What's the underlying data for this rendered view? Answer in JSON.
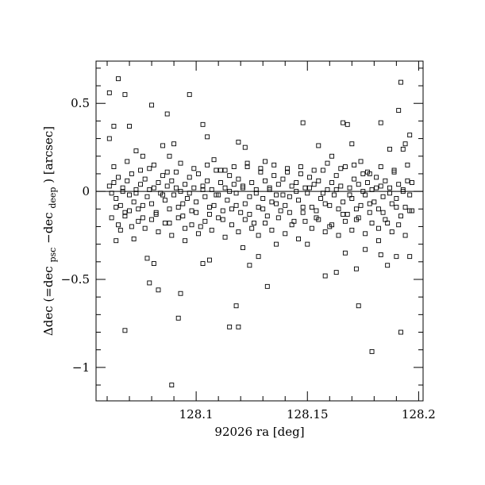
{
  "chart_data": {
    "type": "scatter",
    "title": "",
    "xlabel": "92026 ra [deg]",
    "ylabel": "Δdec (=dec_psc−dec_deep) [arcsec]",
    "ylabel_parts": {
      "prefix": "Δdec (=dec",
      "sub1": "psc",
      "minus": "−dec",
      "sub2": "deep",
      "suffix": ") [arcsec]"
    },
    "xlim": [
      128.055,
      128.202
    ],
    "ylim": [
      -1.19,
      0.74
    ],
    "x_ticks": [
      128.1,
      128.15,
      128.2
    ],
    "x_tick_labels": [
      "128.1",
      "128.15",
      "128.2"
    ],
    "y_ticks": [
      -1,
      -0.5,
      0,
      0.5
    ],
    "y_tick_labels": [
      "−1",
      "−0.5",
      "0",
      "0.5"
    ],
    "zero_line": 0,
    "grid": false,
    "marker": "open-square",
    "points": [
      [
        128.061,
        0.56
      ],
      [
        128.065,
        0.64
      ],
      [
        128.068,
        0.55
      ],
      [
        128.061,
        0.3
      ],
      [
        128.063,
        0.37
      ],
      [
        128.07,
        0.37
      ],
      [
        128.073,
        0.23
      ],
      [
        128.076,
        0.2
      ],
      [
        128.08,
        0.49
      ],
      [
        128.087,
        0.44
      ],
      [
        128.085,
        0.26
      ],
      [
        128.088,
        0.2
      ],
      [
        128.09,
        0.27
      ],
      [
        128.097,
        0.55
      ],
      [
        128.103,
        0.38
      ],
      [
        128.105,
        0.31
      ],
      [
        128.108,
        0.18
      ],
      [
        128.113,
        0.12
      ],
      [
        128.119,
        0.28
      ],
      [
        128.122,
        0.25
      ],
      [
        128.131,
        0.17
      ],
      [
        128.148,
        0.39
      ],
      [
        128.155,
        0.26
      ],
      [
        128.161,
        0.2
      ],
      [
        128.166,
        0.39
      ],
      [
        128.168,
        0.38
      ],
      [
        128.17,
        0.27
      ],
      [
        128.174,
        0.17
      ],
      [
        128.178,
        0.1
      ],
      [
        128.183,
        0.39
      ],
      [
        128.187,
        0.24
      ],
      [
        128.192,
        0.62
      ],
      [
        128.191,
        0.46
      ],
      [
        128.196,
        0.32
      ],
      [
        128.194,
        0.27
      ],
      [
        128.193,
        0.24
      ],
      [
        128.068,
        -0.79
      ],
      [
        128.078,
        -0.38
      ],
      [
        128.079,
        -0.52
      ],
      [
        128.081,
        -0.41
      ],
      [
        128.083,
        -0.56
      ],
      [
        128.089,
        -1.1
      ],
      [
        128.093,
        -0.58
      ],
      [
        128.092,
        -0.72
      ],
      [
        128.103,
        -0.41
      ],
      [
        128.106,
        -0.39
      ],
      [
        128.115,
        -0.77
      ],
      [
        128.118,
        -0.65
      ],
      [
        128.119,
        -0.77
      ],
      [
        128.124,
        -0.42
      ],
      [
        128.128,
        -0.37
      ],
      [
        128.132,
        -0.54
      ],
      [
        128.158,
        -0.48
      ],
      [
        128.163,
        -0.46
      ],
      [
        128.167,
        -0.35
      ],
      [
        128.173,
        -0.65
      ],
      [
        128.172,
        -0.44
      ],
      [
        128.179,
        -0.91
      ],
      [
        128.183,
        -0.36
      ],
      [
        128.186,
        -0.42
      ],
      [
        128.19,
        -0.37
      ],
      [
        128.192,
        -0.8
      ],
      [
        128.196,
        -0.37
      ],
      [
        128.182,
        -0.28
      ],
      [
        128.176,
        -0.33
      ],
      [
        128.15,
        -0.3
      ],
      [
        128.136,
        -0.3
      ],
      [
        128.121,
        -0.32
      ],
      [
        128.095,
        -0.28
      ],
      [
        128.072,
        -0.27
      ],
      [
        128.064,
        -0.28
      ],
      [
        128.066,
        -0.22
      ],
      [
        128.061,
        0.03
      ],
      [
        128.062,
        -0.01
      ],
      [
        128.063,
        0.05
      ],
      [
        128.064,
        -0.04
      ],
      [
        128.065,
        0.08
      ],
      [
        128.066,
        -0.08
      ],
      [
        128.067,
        0.02
      ],
      [
        128.068,
        -0.12
      ],
      [
        128.069,
        0.06
      ],
      [
        128.07,
        -0.02
      ],
      [
        128.071,
        0.1
      ],
      [
        128.072,
        -0.06
      ],
      [
        128.073,
        0.01
      ],
      [
        128.074,
        -0.1
      ],
      [
        128.075,
        0.04
      ],
      [
        128.076,
        -0.15
      ],
      [
        128.077,
        0.07
      ],
      [
        128.078,
        -0.03
      ],
      [
        128.079,
        0.13
      ],
      [
        128.08,
        -0.07
      ],
      [
        128.081,
        0.02
      ],
      [
        128.082,
        -0.12
      ],
      [
        128.083,
        0.05
      ],
      [
        128.084,
        -0.01
      ],
      [
        128.085,
        0.09
      ],
      [
        128.086,
        -0.05
      ],
      [
        128.087,
        0.03
      ],
      [
        128.088,
        -0.18
      ],
      [
        128.089,
        0.06
      ],
      [
        128.09,
        -0.02
      ],
      [
        128.091,
        0.11
      ],
      [
        128.092,
        -0.09
      ],
      [
        128.093,
        0.0
      ],
      [
        128.094,
        -0.14
      ],
      [
        128.095,
        0.04
      ],
      [
        128.096,
        -0.04
      ],
      [
        128.097,
        0.08
      ],
      [
        128.098,
        -0.11
      ],
      [
        128.099,
        0.02
      ],
      [
        128.1,
        -0.06
      ],
      [
        128.101,
        0.1
      ],
      [
        128.102,
        -0.2
      ],
      [
        128.103,
        0.03
      ],
      [
        128.104,
        -0.03
      ],
      [
        128.105,
        0.06
      ],
      [
        128.106,
        -0.13
      ],
      [
        128.107,
        0.01
      ],
      [
        128.108,
        -0.08
      ],
      [
        128.109,
        0.12
      ],
      [
        128.11,
        -0.02
      ],
      [
        128.111,
        0.05
      ],
      [
        128.112,
        -0.16
      ],
      [
        128.113,
        0.02
      ],
      [
        128.114,
        -0.05
      ],
      [
        128.115,
        0.09
      ],
      [
        128.116,
        -0.1
      ],
      [
        128.117,
        0.04
      ],
      [
        128.118,
        -0.01
      ],
      [
        128.119,
        0.07
      ],
      [
        128.12,
        -0.12
      ],
      [
        128.121,
        0.03
      ],
      [
        128.122,
        -0.07
      ],
      [
        128.123,
        0.14
      ],
      [
        128.124,
        -0.03
      ],
      [
        128.125,
        0.05
      ],
      [
        128.126,
        -0.18
      ],
      [
        128.127,
        0.01
      ],
      [
        128.128,
        -0.09
      ],
      [
        128.129,
        0.11
      ],
      [
        128.13,
        -0.04
      ],
      [
        128.131,
        0.06
      ],
      [
        128.132,
        -0.14
      ],
      [
        128.133,
        0.02
      ],
      [
        128.134,
        -0.06
      ],
      [
        128.135,
        0.09
      ],
      [
        128.136,
        -0.02
      ],
      [
        128.137,
        0.04
      ],
      [
        128.138,
        -0.11
      ],
      [
        128.139,
        0.07
      ],
      [
        128.14,
        -0.08
      ],
      [
        128.141,
        0.13
      ],
      [
        128.142,
        -0.03
      ],
      [
        128.143,
        0.03
      ],
      [
        128.144,
        -0.17
      ],
      [
        128.145,
        0.05
      ],
      [
        128.146,
        -0.05
      ],
      [
        128.147,
        0.1
      ],
      [
        128.148,
        -0.12
      ],
      [
        128.149,
        0.02
      ],
      [
        128.15,
        -0.01
      ],
      [
        128.151,
        0.08
      ],
      [
        128.152,
        -0.09
      ],
      [
        128.153,
        0.04
      ],
      [
        128.154,
        -0.15
      ],
      [
        128.155,
        0.06
      ],
      [
        128.156,
        -0.04
      ],
      [
        128.157,
        0.12
      ],
      [
        128.158,
        -0.07
      ],
      [
        128.159,
        0.01
      ],
      [
        128.16,
        -0.2
      ],
      [
        128.161,
        0.05
      ],
      [
        128.162,
        -0.02
      ],
      [
        128.163,
        0.09
      ],
      [
        128.164,
        -0.1
      ],
      [
        128.165,
        0.03
      ],
      [
        128.166,
        -0.06
      ],
      [
        128.167,
        0.14
      ],
      [
        128.168,
        -0.13
      ],
      [
        128.169,
        0.02
      ],
      [
        128.17,
        -0.04
      ],
      [
        128.171,
        0.07
      ],
      [
        128.172,
        -0.16
      ],
      [
        128.173,
        0.04
      ],
      [
        128.174,
        -0.08
      ],
      [
        128.175,
        0.1
      ],
      [
        128.176,
        -0.02
      ],
      [
        128.177,
        0.05
      ],
      [
        128.178,
        -0.12
      ],
      [
        128.179,
        0.01
      ],
      [
        128.18,
        -0.06
      ],
      [
        128.181,
        0.08
      ],
      [
        128.182,
        -0.1
      ],
      [
        128.183,
        0.03
      ],
      [
        128.184,
        -0.03
      ],
      [
        128.185,
        0.06
      ],
      [
        128.186,
        -0.18
      ],
      [
        128.187,
        0.02
      ],
      [
        128.188,
        -0.07
      ],
      [
        128.189,
        0.11
      ],
      [
        128.19,
        -0.04
      ],
      [
        128.191,
        0.04
      ],
      [
        128.192,
        -0.14
      ],
      [
        128.193,
        0.0
      ],
      [
        128.194,
        -0.09
      ],
      [
        128.195,
        0.06
      ],
      [
        128.196,
        -0.02
      ],
      [
        128.197,
        -0.11
      ],
      [
        128.197,
        0.05
      ],
      [
        128.062,
        -0.15
      ],
      [
        128.065,
        -0.19
      ],
      [
        128.068,
        -0.14
      ],
      [
        128.071,
        -0.2
      ],
      [
        128.074,
        -0.17
      ],
      [
        128.077,
        -0.21
      ],
      [
        128.08,
        -0.16
      ],
      [
        128.083,
        -0.23
      ],
      [
        128.086,
        -0.18
      ],
      [
        128.089,
        -0.25
      ],
      [
        128.092,
        -0.15
      ],
      [
        128.095,
        -0.21
      ],
      [
        128.098,
        -0.19
      ],
      [
        128.101,
        -0.24
      ],
      [
        128.104,
        -0.17
      ],
      [
        128.107,
        -0.22
      ],
      [
        128.11,
        -0.15
      ],
      [
        128.113,
        -0.26
      ],
      [
        128.116,
        -0.19
      ],
      [
        128.119,
        -0.23
      ],
      [
        128.122,
        -0.16
      ],
      [
        128.125,
        -0.21
      ],
      [
        128.128,
        -0.25
      ],
      [
        128.131,
        -0.18
      ],
      [
        128.134,
        -0.22
      ],
      [
        128.137,
        -0.15
      ],
      [
        128.14,
        -0.24
      ],
      [
        128.143,
        -0.19
      ],
      [
        128.146,
        -0.27
      ],
      [
        128.149,
        -0.17
      ],
      [
        128.152,
        -0.21
      ],
      [
        128.155,
        -0.16
      ],
      [
        128.158,
        -0.23
      ],
      [
        128.161,
        -0.19
      ],
      [
        128.164,
        -0.25
      ],
      [
        128.167,
        -0.17
      ],
      [
        128.17,
        -0.22
      ],
      [
        128.173,
        -0.15
      ],
      [
        128.176,
        -0.24
      ],
      [
        128.179,
        -0.18
      ],
      [
        128.182,
        -0.21
      ],
      [
        128.185,
        -0.16
      ],
      [
        128.188,
        -0.23
      ],
      [
        128.191,
        -0.19
      ],
      [
        128.194,
        -0.25
      ],
      [
        128.063,
        0.14
      ],
      [
        128.069,
        0.17
      ],
      [
        128.075,
        0.12
      ],
      [
        128.081,
        0.15
      ],
      [
        128.087,
        0.11
      ],
      [
        128.093,
        0.16
      ],
      [
        128.099,
        0.13
      ],
      [
        128.105,
        0.15
      ],
      [
        128.111,
        0.12
      ],
      [
        128.117,
        0.14
      ],
      [
        128.123,
        0.16
      ],
      [
        128.129,
        0.13
      ],
      [
        128.135,
        0.15
      ],
      [
        128.141,
        0.11
      ],
      [
        128.147,
        0.14
      ],
      [
        128.153,
        0.12
      ],
      [
        128.159,
        0.16
      ],
      [
        128.165,
        0.13
      ],
      [
        128.171,
        0.15
      ],
      [
        128.177,
        0.11
      ],
      [
        128.183,
        0.14
      ],
      [
        128.189,
        0.12
      ],
      [
        128.195,
        0.15
      ],
      [
        128.064,
        -0.09
      ],
      [
        128.07,
        -0.11
      ],
      [
        128.076,
        -0.08
      ],
      [
        128.082,
        -0.13
      ],
      [
        128.088,
        -0.1
      ],
      [
        128.094,
        -0.07
      ],
      [
        128.1,
        -0.12
      ],
      [
        128.106,
        -0.09
      ],
      [
        128.112,
        -0.11
      ],
      [
        128.118,
        -0.08
      ],
      [
        128.124,
        -0.13
      ],
      [
        128.13,
        -0.1
      ],
      [
        128.136,
        -0.07
      ],
      [
        128.142,
        -0.12
      ],
      [
        128.148,
        -0.09
      ],
      [
        128.154,
        -0.11
      ],
      [
        128.16,
        -0.08
      ],
      [
        128.166,
        -0.13
      ],
      [
        128.172,
        -0.1
      ],
      [
        128.178,
        -0.07
      ],
      [
        128.184,
        -0.12
      ],
      [
        128.19,
        -0.09
      ],
      [
        128.196,
        -0.11
      ],
      [
        128.067,
        0.0
      ],
      [
        128.073,
        -0.01
      ],
      [
        128.079,
        0.01
      ],
      [
        128.085,
        -0.02
      ],
      [
        128.091,
        0.02
      ],
      [
        128.097,
        -0.01
      ],
      [
        128.103,
        0.01
      ],
      [
        128.109,
        -0.02
      ],
      [
        128.115,
        0.0
      ],
      [
        128.121,
        0.02
      ],
      [
        128.127,
        -0.01
      ],
      [
        128.133,
        0.01
      ],
      [
        128.139,
        -0.02
      ],
      [
        128.145,
        0.0
      ],
      [
        128.151,
        0.02
      ],
      [
        128.157,
        -0.01
      ],
      [
        128.163,
        0.01
      ],
      [
        128.169,
        -0.02
      ],
      [
        128.175,
        0.0
      ],
      [
        128.181,
        0.02
      ],
      [
        128.187,
        -0.01
      ],
      [
        128.193,
        0.01
      ]
    ]
  }
}
